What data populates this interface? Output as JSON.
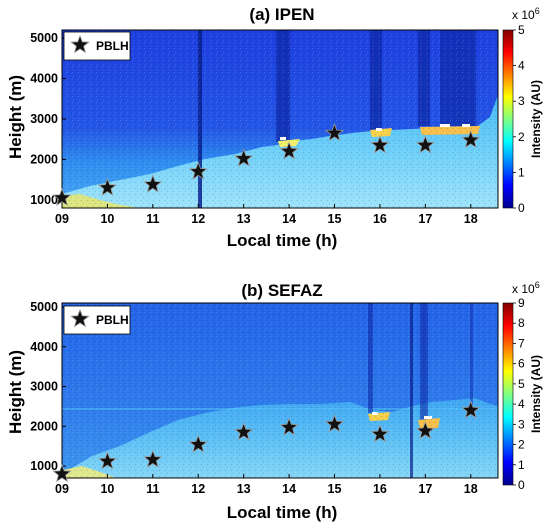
{
  "chart_data": [
    {
      "type": "heatmap",
      "title": "(a)  IPEN",
      "xlabel": "Local time (h)",
      "ylabel": "Height (m)",
      "xlim": [
        9,
        18.6
      ],
      "ylim": [
        800,
        5200
      ],
      "x_ticks": [
        "09",
        "10",
        "11",
        "12",
        "13",
        "14",
        "15",
        "16",
        "17",
        "18"
      ],
      "y_ticks": [
        1000,
        2000,
        3000,
        4000,
        5000
      ],
      "colorbar": {
        "label": "Intensity (AU)",
        "multiplier": "x 10",
        "multiplier_exp": "6",
        "range": [
          0,
          5
        ],
        "ticks": [
          0,
          1,
          2,
          3,
          4,
          5
        ]
      },
      "series": [
        {
          "name": "PBLH",
          "marker": "star",
          "x": [
            9,
            10,
            11,
            12,
            13,
            14,
            15,
            16,
            17,
            18
          ],
          "y": [
            1050,
            1300,
            1380,
            1700,
            2020,
            2200,
            2650,
            2350,
            2350,
            2480
          ]
        }
      ],
      "legend": "top-left"
    },
    {
      "type": "heatmap",
      "title": "(b)  SEFAZ",
      "xlabel": "Local time (h)",
      "ylabel": "Height (m)",
      "xlim": [
        9,
        18.6
      ],
      "ylim": [
        700,
        5100
      ],
      "x_ticks": [
        "09",
        "10",
        "11",
        "12",
        "13",
        "14",
        "15",
        "16",
        "17",
        "18"
      ],
      "y_ticks": [
        1000,
        2000,
        3000,
        4000,
        5000
      ],
      "colorbar": {
        "label": "Intensity (AU)",
        "multiplier": "x 10",
        "multiplier_exp": "6",
        "range": [
          0,
          9
        ],
        "ticks": [
          0,
          1,
          2,
          3,
          4,
          5,
          6,
          7,
          8,
          9
        ]
      },
      "series": [
        {
          "name": "PBLH",
          "marker": "star",
          "x": [
            9,
            10,
            11,
            12,
            13,
            14,
            15,
            16,
            17,
            18
          ],
          "y": [
            800,
            1120,
            1160,
            1540,
            1850,
            1970,
            2050,
            1800,
            1880,
            2400
          ]
        }
      ],
      "legend": "top-left"
    }
  ]
}
